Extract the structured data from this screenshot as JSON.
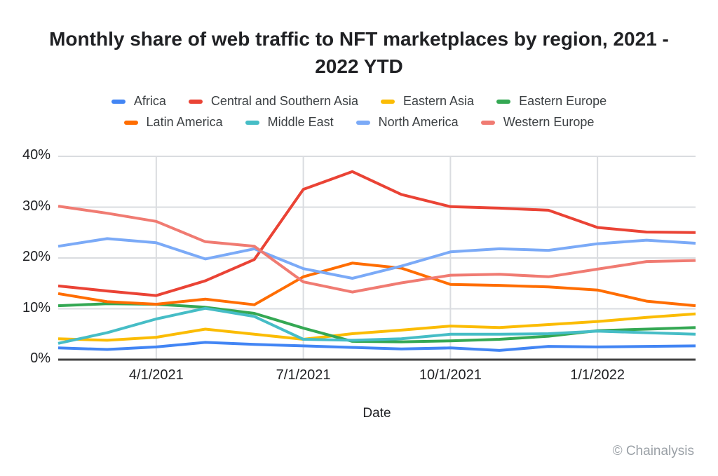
{
  "title": "Monthly share of web traffic to NFT marketplaces by region, 2021 - 2022 YTD",
  "attribution": "© Chainalysis",
  "chart_data": {
    "type": "line",
    "title": "Monthly share of web traffic to NFT marketplaces by region, 2021 - 2022 YTD",
    "xlabel": "Date",
    "ylabel": "",
    "ylim": [
      0,
      40
    ],
    "grid": true,
    "legend_position": "top",
    "x": [
      "2/1/2021",
      "3/1/2021",
      "4/1/2021",
      "5/1/2021",
      "6/1/2021",
      "7/1/2021",
      "8/1/2021",
      "9/1/2021",
      "10/1/2021",
      "11/1/2021",
      "12/1/2021",
      "1/1/2022",
      "2/1/2022",
      "3/1/2022"
    ],
    "x_tick_labels": [
      "4/1/2021",
      "7/1/2021",
      "10/1/2021",
      "1/1/2022"
    ],
    "x_tick_indices": [
      2,
      5,
      8,
      11
    ],
    "y_ticks": [
      "0%",
      "10%",
      "20%",
      "30%",
      "40%"
    ],
    "series": [
      {
        "name": "Africa",
        "color": "#4285F4",
        "values": [
          2.3,
          2.0,
          2.5,
          3.4,
          3.0,
          2.7,
          2.4,
          2.1,
          2.3,
          1.8,
          2.6,
          2.5,
          2.6,
          2.7
        ]
      },
      {
        "name": "Central and Southern Asia",
        "color": "#EA4335",
        "values": [
          14.5,
          13.5,
          12.6,
          15.5,
          19.7,
          33.5,
          37.0,
          32.5,
          30.1,
          29.8,
          29.4,
          26.0,
          25.1,
          25.0
        ]
      },
      {
        "name": "Eastern Asia",
        "color": "#FBBC04",
        "values": [
          4.1,
          3.8,
          4.4,
          6.0,
          5.0,
          4.0,
          5.1,
          5.8,
          6.6,
          6.3,
          6.9,
          7.5,
          8.3,
          9.0
        ]
      },
      {
        "name": "Eastern Europe",
        "color": "#34A853",
        "values": [
          10.6,
          11.0,
          10.9,
          10.3,
          9.1,
          6.2,
          3.6,
          3.5,
          3.7,
          4.0,
          4.6,
          5.7,
          6.0,
          6.3
        ]
      },
      {
        "name": "Latin America",
        "color": "#FF6D01",
        "values": [
          13.0,
          11.4,
          10.9,
          11.9,
          10.8,
          16.3,
          19.0,
          18.0,
          14.8,
          14.6,
          14.3,
          13.7,
          11.5,
          10.6
        ]
      },
      {
        "name": "Middle East",
        "color": "#46BDC6",
        "values": [
          3.2,
          5.3,
          8.0,
          10.1,
          8.5,
          4.0,
          3.8,
          4.1,
          5.0,
          5.0,
          5.1,
          5.6,
          5.3,
          5.0
        ]
      },
      {
        "name": "North America",
        "color": "#7BAAF7",
        "values": [
          22.3,
          23.8,
          23.0,
          19.8,
          21.8,
          17.9,
          16.0,
          18.4,
          21.2,
          21.8,
          21.5,
          22.8,
          23.5,
          22.9
        ]
      },
      {
        "name": "Western Europe",
        "color": "#F07B72",
        "values": [
          30.2,
          28.8,
          27.2,
          23.2,
          22.3,
          15.3,
          13.3,
          15.1,
          16.6,
          16.8,
          16.3,
          17.8,
          19.3,
          19.5
        ]
      }
    ],
    "colors": {
      "gridline": "#dadce0",
      "axis_baseline": "#424242",
      "tick_text": "#202124",
      "attribution_text": "#9aa0a6"
    }
  }
}
